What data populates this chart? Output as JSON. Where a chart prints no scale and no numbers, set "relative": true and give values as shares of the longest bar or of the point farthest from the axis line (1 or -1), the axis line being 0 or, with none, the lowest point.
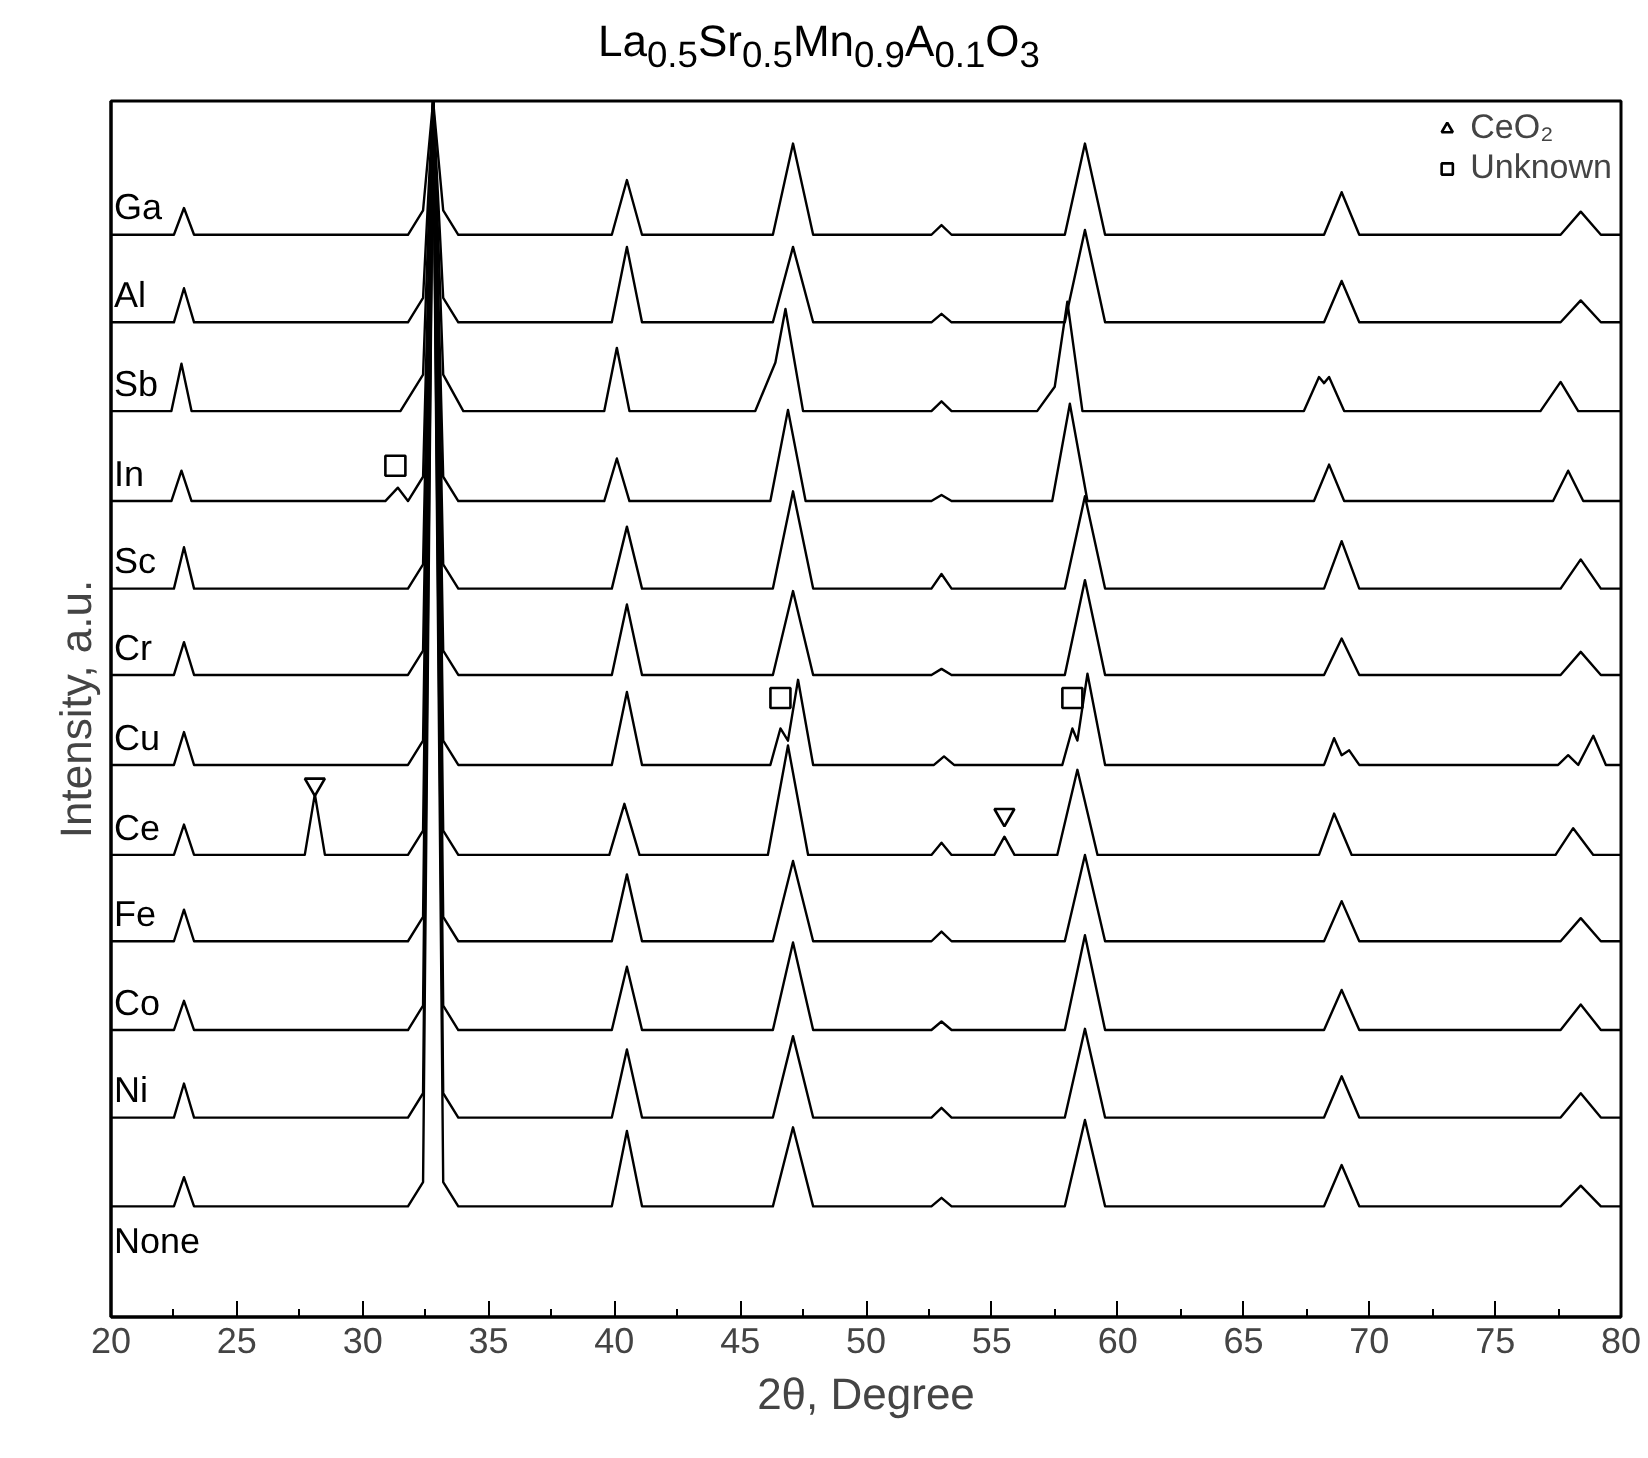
{
  "chart_data": {
    "type": "line",
    "title": "La$_{0.5}$Sr$_{0.5}$Mn$_{0.9}$A$_{0.1}$O$_{3}$",
    "xlabel": "2θ, Degree",
    "ylabel": "Intensity, a.u.",
    "relative": true,
    "legend": "top right",
    "tick_labels": "x",
    "xlim": [
      20,
      80
    ],
    "xticks": [
      20,
      {
        "value": 22.5,
        "label": null
      },
      25,
      {
        "value": 27.5,
        "label": null
      },
      30,
      {
        "value": 32.5,
        "label": null
      },
      35,
      {
        "value": 37.5,
        "label": null
      },
      40,
      {
        "value": 42.5,
        "label": null
      },
      45,
      {
        "value": 47.5,
        "label": null
      },
      50,
      {
        "value": 52.5,
        "label": null
      },
      55,
      {
        "value": 57.5,
        "label": null
      },
      60,
      {
        "value": 62.5,
        "label": null
      },
      65,
      {
        "value": 67.5,
        "label": null
      },
      70,
      {
        "value": 72.5,
        "label": null
      },
      75,
      {
        "value": 77.5,
        "label": null
      },
      80
    ],
    "x": [
      20,
      22.5,
      22.9,
      23.3,
      31.8,
      32.4,
      32.8,
      33.2,
      33.8,
      39.9,
      40.5,
      41.1,
      46.3,
      47.1,
      47.9,
      52.6,
      53.0,
      53.4,
      57.9,
      58.7,
      59.5,
      68.2,
      68.9,
      69.6,
      77.6,
      78.4,
      79.2,
      80
    ],
    "series": [
      {
        "name": "Ga",
        "color": "#000000",
        "values": [
          0.89,
          0.89,
          0.912,
          0.89,
          0.89,
          0.91,
          1,
          0.91,
          0.89,
          0.89,
          0.935,
          0.89,
          0.89,
          0.965,
          0.89,
          0.89,
          0.898,
          0.89,
          0.89,
          0.965,
          0.89,
          0.89,
          0.925,
          0.89,
          0.89,
          0.909,
          0.89,
          0.89
        ]
      },
      {
        "name": "Al",
        "color": "#000000",
        "values": [
          0.818,
          0.818,
          0.846,
          0.818,
          0.818,
          0.838,
          1,
          0.838,
          0.818,
          0.818,
          0.88,
          0.818,
          0.818,
          0.88,
          0.818,
          0.818,
          0.825,
          0.818,
          0.818,
          0.894,
          0.818,
          0.818,
          0.852,
          0.818,
          0.818,
          0.836,
          0.818,
          0.818
        ]
      },
      {
        "name": "Sb",
        "color": "#000000",
        "x": [
          20,
          22.4,
          22.8,
          23.2,
          31.5,
          32.4,
          32.8,
          33.2,
          34.0,
          39.6,
          40.1,
          40.6,
          45.6,
          46.4,
          46.8,
          47.5,
          52.6,
          53.0,
          53.4,
          56.8,
          57.5,
          58.0,
          58.6,
          67.4,
          68.0,
          68.2,
          68.4,
          69.0,
          76.8,
          77.6,
          78.3,
          80
        ],
        "values": [
          0.745,
          0.745,
          0.784,
          0.745,
          0.745,
          0.775,
          1,
          0.775,
          0.745,
          0.745,
          0.797,
          0.745,
          0.745,
          0.785,
          0.829,
          0.745,
          0.745,
          0.753,
          0.745,
          0.745,
          0.765,
          0.835,
          0.745,
          0.745,
          0.773,
          0.768,
          0.773,
          0.745,
          0.745,
          0.769,
          0.745,
          0.745
        ]
      },
      {
        "name": "In",
        "color": "#000000",
        "x": [
          20,
          22.4,
          22.8,
          23.2,
          30.9,
          31.4,
          31.8,
          32.4,
          32.8,
          33.2,
          33.8,
          39.6,
          40.1,
          40.6,
          46.2,
          46.9,
          47.6,
          52.6,
          53.0,
          53.4,
          57.4,
          58.1,
          58.8,
          67.8,
          68.4,
          69.0,
          77.3,
          77.9,
          78.5,
          80
        ],
        "values": [
          0.671,
          0.671,
          0.696,
          0.671,
          0.671,
          0.682,
          0.671,
          0.691,
          1,
          0.691,
          0.671,
          0.671,
          0.706,
          0.671,
          0.671,
          0.746,
          0.671,
          0.671,
          0.676,
          0.671,
          0.671,
          0.751,
          0.671,
          0.671,
          0.701,
          0.671,
          0.671,
          0.696,
          0.671,
          0.671
        ]
      },
      {
        "name": "Sc",
        "color": "#000000",
        "values": [
          0.599,
          0.599,
          0.633,
          0.599,
          0.599,
          0.619,
          1,
          0.619,
          0.599,
          0.599,
          0.65,
          0.599,
          0.599,
          0.679,
          0.599,
          0.599,
          0.611,
          0.599,
          0.599,
          0.675,
          0.599,
          0.599,
          0.638,
          0.599,
          0.599,
          0.623,
          0.599,
          0.599
        ]
      },
      {
        "name": "Cr",
        "color": "#000000",
        "values": [
          0.528,
          0.528,
          0.555,
          0.528,
          0.528,
          0.548,
          1,
          0.548,
          0.528,
          0.528,
          0.586,
          0.528,
          0.528,
          0.597,
          0.528,
          0.528,
          0.533,
          0.528,
          0.528,
          0.606,
          0.528,
          0.528,
          0.558,
          0.528,
          0.528,
          0.547,
          0.528,
          0.528
        ]
      },
      {
        "name": "Cu",
        "color": "#000000",
        "x": [
          20,
          22.5,
          22.9,
          23.3,
          31.8,
          32.4,
          32.8,
          33.2,
          33.8,
          39.9,
          40.5,
          41.1,
          46.2,
          46.6,
          46.9,
          47.3,
          47.9,
          52.7,
          53.1,
          53.5,
          57.8,
          58.2,
          58.4,
          58.8,
          59.5,
          68.2,
          68.6,
          68.9,
          69.2,
          69.6,
          77.5,
          77.9,
          78.3,
          78.9,
          79.4,
          80
        ],
        "values": [
          0.454,
          0.454,
          0.481,
          0.454,
          0.454,
          0.474,
          1,
          0.474,
          0.454,
          0.454,
          0.514,
          0.454,
          0.454,
          0.484,
          0.474,
          0.524,
          0.454,
          0.454,
          0.461,
          0.454,
          0.454,
          0.484,
          0.474,
          0.529,
          0.454,
          0.454,
          0.476,
          0.462,
          0.466,
          0.454,
          0.454,
          0.462,
          0.454,
          0.478,
          0.454,
          0.454
        ]
      },
      {
        "name": "Ce",
        "color": "#000000",
        "x": [
          20,
          22.5,
          22.9,
          23.3,
          27.7,
          28.1,
          28.5,
          31.8,
          32.4,
          32.8,
          33.2,
          33.8,
          39.8,
          40.4,
          41.0,
          46.1,
          46.9,
          47.7,
          52.6,
          53.0,
          53.4,
          55.1,
          55.5,
          55.9,
          57.6,
          58.4,
          59.2,
          68.0,
          68.6,
          69.3,
          77.4,
          78.1,
          78.9,
          80
        ],
        "values": [
          0.38,
          0.38,
          0.405,
          0.38,
          0.38,
          0.43,
          0.38,
          0.38,
          0.4,
          1,
          0.4,
          0.38,
          0.38,
          0.422,
          0.38,
          0.38,
          0.47,
          0.38,
          0.38,
          0.39,
          0.38,
          0.38,
          0.395,
          0.38,
          0.38,
          0.45,
          0.38,
          0.38,
          0.414,
          0.38,
          0.38,
          0.402,
          0.38,
          0.38
        ]
      },
      {
        "name": "Fe",
        "color": "#000000",
        "values": [
          0.309,
          0.309,
          0.335,
          0.309,
          0.309,
          0.329,
          1,
          0.329,
          0.309,
          0.309,
          0.364,
          0.309,
          0.309,
          0.375,
          0.309,
          0.309,
          0.317,
          0.309,
          0.309,
          0.38,
          0.309,
          0.309,
          0.342,
          0.309,
          0.309,
          0.328,
          0.309,
          0.309
        ]
      },
      {
        "name": "Co",
        "color": "#000000",
        "values": [
          0.236,
          0.236,
          0.26,
          0.236,
          0.236,
          0.256,
          1,
          0.256,
          0.236,
          0.236,
          0.288,
          0.236,
          0.236,
          0.308,
          0.236,
          0.236,
          0.243,
          0.236,
          0.236,
          0.314,
          0.236,
          0.236,
          0.269,
          0.236,
          0.236,
          0.257,
          0.236,
          0.236
        ]
      },
      {
        "name": "Ni",
        "color": "#000000",
        "values": [
          0.164,
          0.164,
          0.192,
          0.164,
          0.164,
          0.184,
          1,
          0.184,
          0.164,
          0.164,
          0.22,
          0.164,
          0.164,
          0.231,
          0.164,
          0.164,
          0.172,
          0.164,
          0.164,
          0.237,
          0.164,
          0.164,
          0.198,
          0.164,
          0.164,
          0.184,
          0.164,
          0.164
        ]
      },
      {
        "name": "None",
        "color": "#000000",
        "values": [
          0.091,
          0.091,
          0.115,
          0.091,
          0.091,
          0.111,
          1,
          0.111,
          0.091,
          0.091,
          0.153,
          0.091,
          0.091,
          0.156,
          0.091,
          0.091,
          0.098,
          0.091,
          0.091,
          0.162,
          0.091,
          0.091,
          0.125,
          0.091,
          0.091,
          0.108,
          0.091,
          0.091
        ]
      },
      {
        "name": "CeO₂",
        "type": "scatter",
        "marker": "triangle",
        "color": "#000000",
        "x": [
          28.1,
          55.5
        ],
        "values": [
          0.438,
          0.413
        ]
      },
      {
        "name": "Unknown",
        "type": "scatter",
        "marker": "square",
        "color": "#000000",
        "x": [
          31.3,
          46.6,
          58.2
        ],
        "values": [
          0.7,
          0.509,
          0.509
        ]
      }
    ]
  }
}
